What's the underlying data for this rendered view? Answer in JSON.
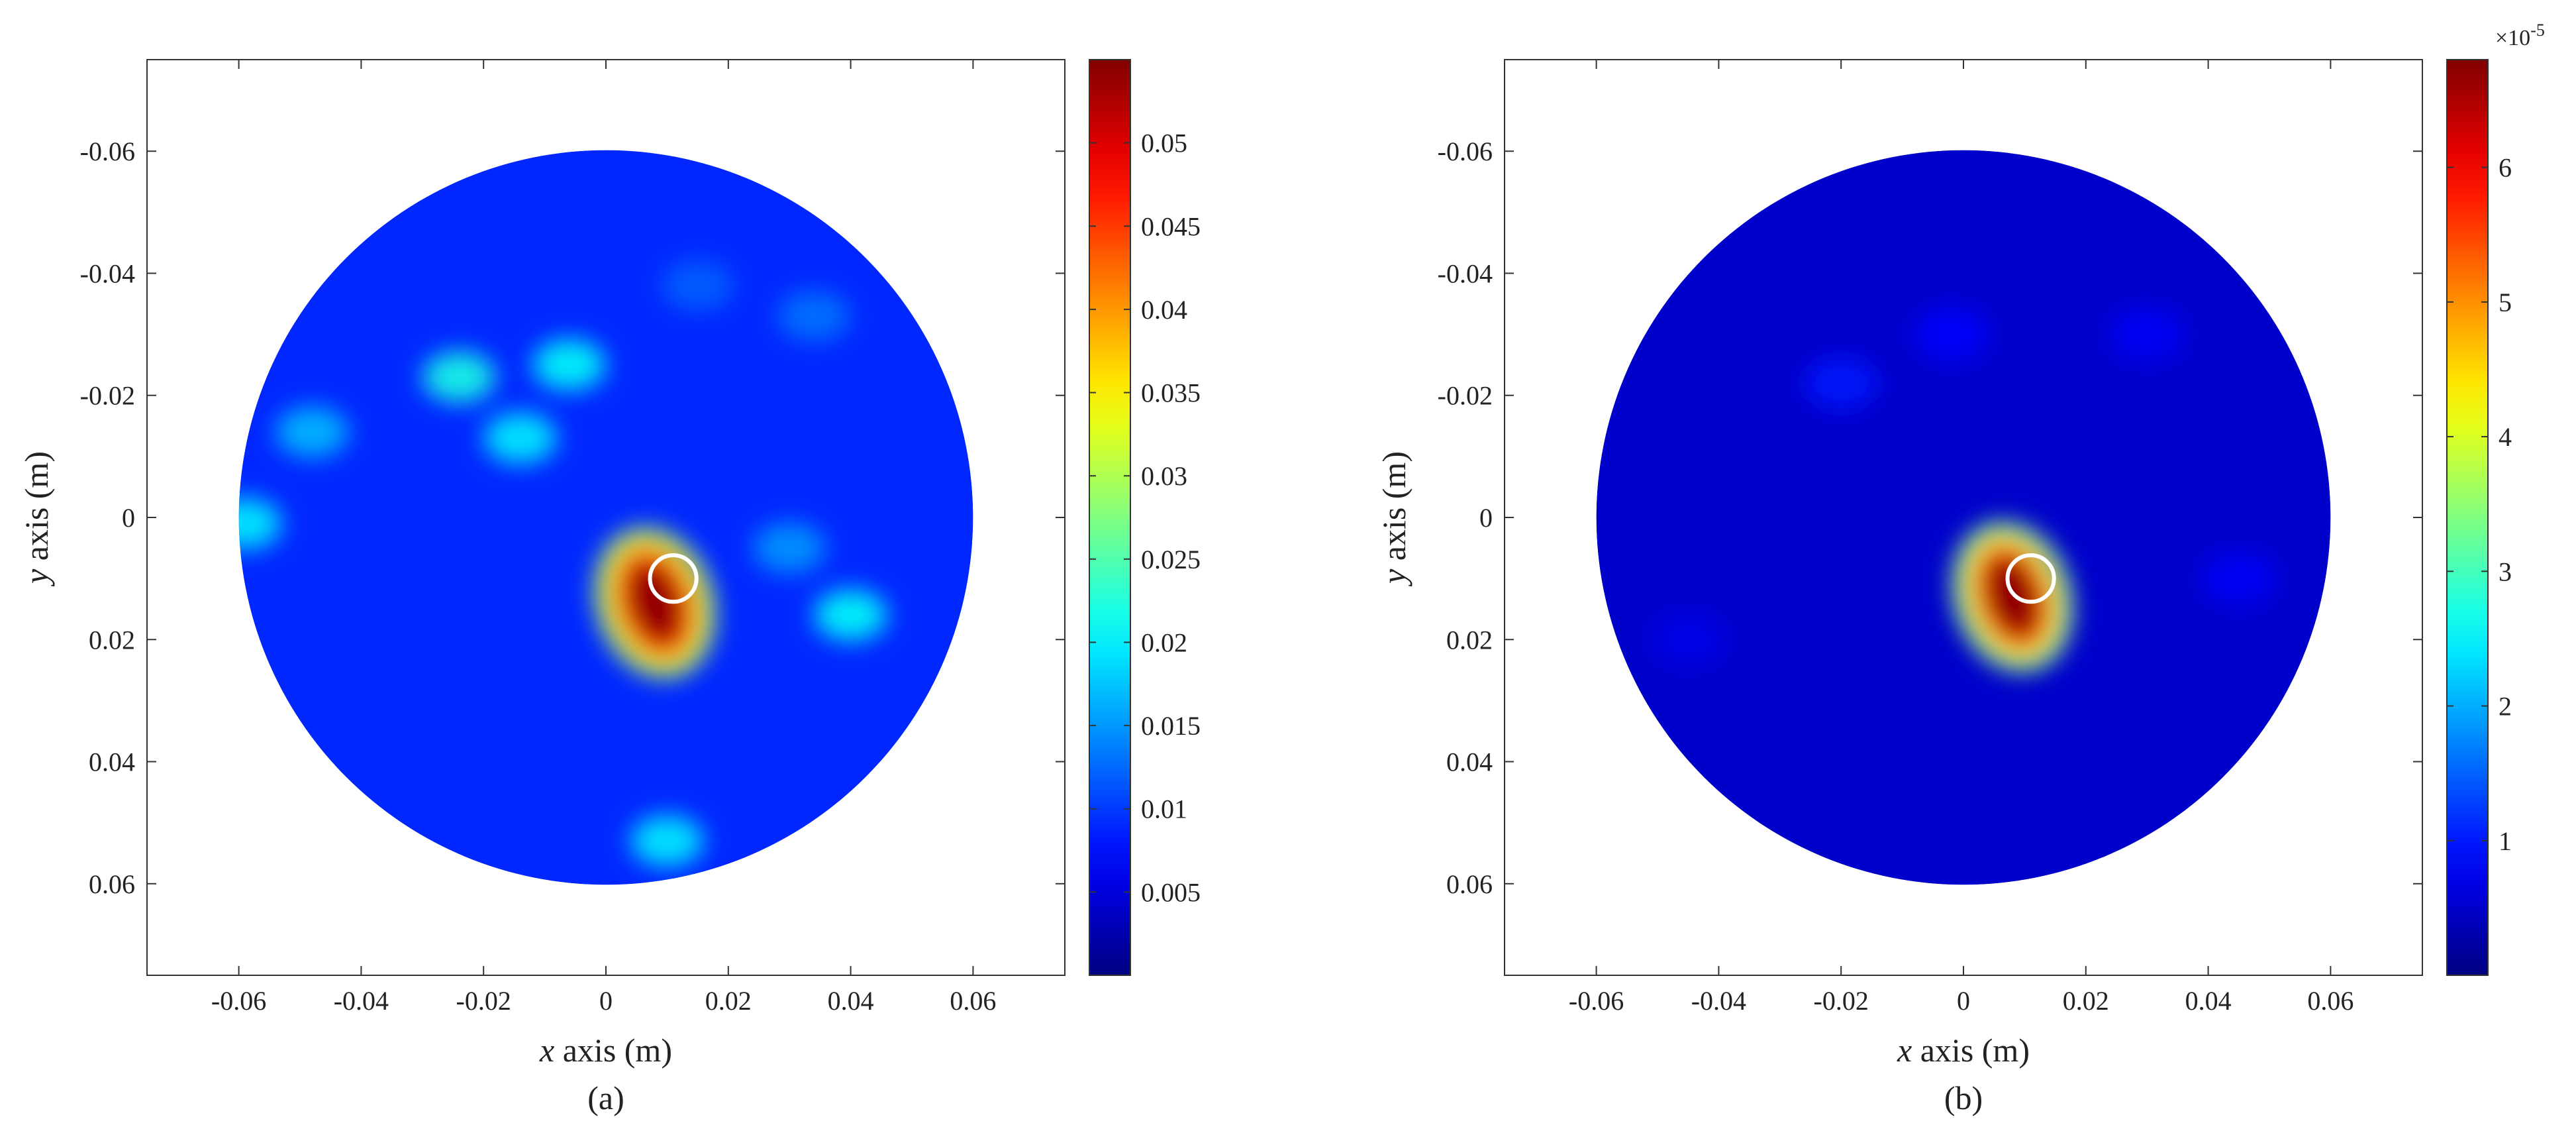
{
  "chart_data": [
    {
      "type": "heatmap",
      "panel_label": "(a)",
      "xlabel_var": "x",
      "xlabel_rest": " axis (m)",
      "ylabel_var": "y",
      "ylabel_rest": " axis (m)",
      "xlim": [
        -0.075,
        0.075
      ],
      "ylim": [
        -0.075,
        0.075
      ],
      "y_reversed": true,
      "x_ticks": [
        -0.06,
        -0.04,
        -0.02,
        0,
        0.02,
        0.04,
        0.06
      ],
      "x_tick_labels": [
        "-0.06",
        "-0.04",
        "-0.02",
        "0",
        "0.02",
        "0.04",
        "0.06"
      ],
      "y_ticks": [
        -0.06,
        -0.04,
        -0.02,
        0,
        0.02,
        0.04,
        0.06
      ],
      "y_tick_labels": [
        "-0.06",
        "-0.04",
        "-0.02",
        "0",
        "0.02",
        "0.04",
        "0.06"
      ],
      "domain": {
        "shape": "disk",
        "center": [
          0,
          0
        ],
        "radius": 0.06
      },
      "colormap": "jet",
      "clim": [
        0,
        0.055
      ],
      "colorbar_ticks": [
        0.005,
        0.01,
        0.015,
        0.02,
        0.025,
        0.03,
        0.035,
        0.04,
        0.045,
        0.05
      ],
      "colorbar_tick_labels": [
        "0.005",
        "0.01",
        "0.015",
        "0.02",
        "0.025",
        "0.03",
        "0.035",
        "0.04",
        "0.045",
        "0.05"
      ],
      "colorbar_exponent": "",
      "background_level": 0.009,
      "peak": {
        "x": 0.008,
        "y": 0.014,
        "value": 0.054
      },
      "blobs": [
        {
          "x": -0.024,
          "y": -0.023,
          "value": 0.022
        },
        {
          "x": -0.006,
          "y": -0.025,
          "value": 0.021
        },
        {
          "x": -0.014,
          "y": -0.013,
          "value": 0.02
        },
        {
          "x": -0.048,
          "y": -0.014,
          "value": 0.017
        },
        {
          "x": -0.059,
          "y": 0.001,
          "value": 0.02
        },
        {
          "x": 0.04,
          "y": 0.016,
          "value": 0.021
        },
        {
          "x": 0.01,
          "y": 0.053,
          "value": 0.02
        },
        {
          "x": 0.03,
          "y": 0.005,
          "value": 0.015
        },
        {
          "x": 0.034,
          "y": -0.033,
          "value": 0.013
        },
        {
          "x": 0.015,
          "y": -0.038,
          "value": 0.012
        }
      ],
      "marker": {
        "shape": "circle",
        "x": 0.011,
        "y": 0.01,
        "radius": 0.0038,
        "color": "#ffffff"
      }
    },
    {
      "type": "heatmap",
      "panel_label": "(b)",
      "xlabel_var": "x",
      "xlabel_rest": " axis (m)",
      "ylabel_var": "y",
      "ylabel_rest": " axis (m)",
      "xlim": [
        -0.075,
        0.075
      ],
      "ylim": [
        -0.075,
        0.075
      ],
      "y_reversed": true,
      "x_ticks": [
        -0.06,
        -0.04,
        -0.02,
        0,
        0.02,
        0.04,
        0.06
      ],
      "x_tick_labels": [
        "-0.06",
        "-0.04",
        "-0.02",
        "0",
        "0.02",
        "0.04",
        "0.06"
      ],
      "y_ticks": [
        -0.06,
        -0.04,
        -0.02,
        0,
        0.02,
        0.04,
        0.06
      ],
      "y_tick_labels": [
        "-0.06",
        "-0.04",
        "-0.02",
        "0",
        "0.02",
        "0.04",
        "0.06"
      ],
      "domain": {
        "shape": "disk",
        "center": [
          0,
          0
        ],
        "radius": 0.06
      },
      "colormap": "jet",
      "clim": [
        0,
        6.8
      ],
      "colorbar_ticks": [
        1,
        2,
        3,
        4,
        5,
        6
      ],
      "colorbar_tick_labels": [
        "1",
        "2",
        "3",
        "4",
        "5",
        "6"
      ],
      "colorbar_exponent": "×10",
      "colorbar_exponent_power": "-5",
      "background_level": 0.5,
      "peak": {
        "x": 0.008,
        "y": 0.013,
        "value": 6.7
      },
      "blobs": [
        {
          "x": -0.02,
          "y": -0.022,
          "value": 1.0
        },
        {
          "x": -0.002,
          "y": -0.03,
          "value": 0.9
        },
        {
          "x": 0.03,
          "y": -0.03,
          "value": 0.8
        },
        {
          "x": 0.045,
          "y": 0.01,
          "value": 0.8
        },
        {
          "x": -0.045,
          "y": 0.02,
          "value": 0.7
        }
      ],
      "marker": {
        "shape": "circle",
        "x": 0.011,
        "y": 0.01,
        "radius": 0.0038,
        "color": "#ffffff"
      }
    }
  ]
}
